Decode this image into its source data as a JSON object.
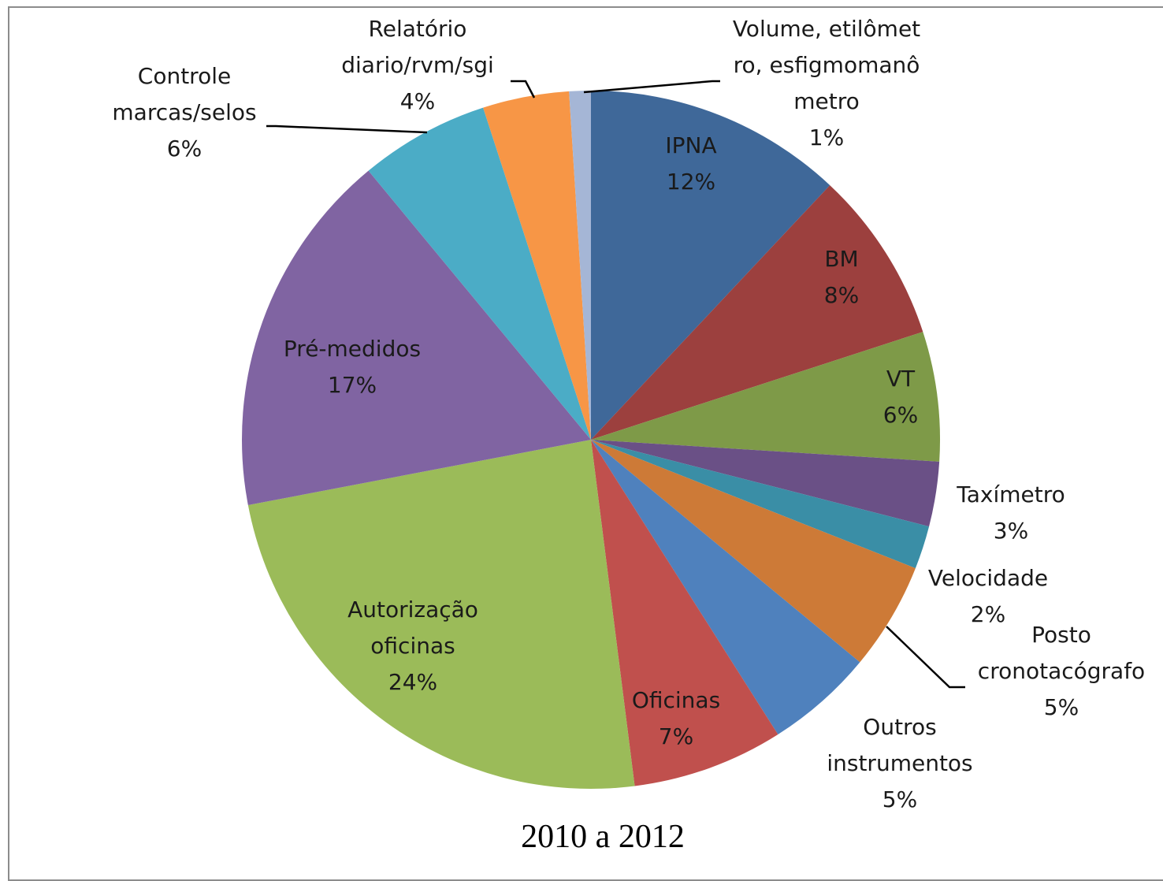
{
  "chart_data": {
    "type": "pie",
    "caption": "2010 a 2012",
    "start_angle_deg": 0,
    "direction": "clockwise",
    "slices": [
      {
        "label": [
          "IPNA"
        ],
        "pct_label": "12%",
        "value": 12,
        "color": "#3f6899"
      },
      {
        "label": [
          "BM"
        ],
        "pct_label": "8%",
        "value": 8,
        "color": "#9c403e"
      },
      {
        "label": [
          "VT"
        ],
        "pct_label": "6%",
        "value": 6,
        "color": "#7e9a48"
      },
      {
        "label": [
          "Taxímetro"
        ],
        "pct_label": "3%",
        "value": 3,
        "color": "#6a5086"
      },
      {
        "label": [
          "Velocidade"
        ],
        "pct_label": "2%",
        "value": 2,
        "color": "#3a8ea6"
      },
      {
        "label": [
          "Posto",
          "cronotacógrafo"
        ],
        "pct_label": "5%",
        "value": 5,
        "color": "#cd7a37"
      },
      {
        "label": [
          "Outros",
          "instrumentos"
        ],
        "pct_label": "5%",
        "value": 5,
        "color": "#4f81bd"
      },
      {
        "label": [
          "Oficinas"
        ],
        "pct_label": "7%",
        "value": 7,
        "color": "#c0504d"
      },
      {
        "label": [
          "Autorização",
          "oficinas"
        ],
        "pct_label": "24%",
        "value": 24,
        "color": "#9bbb59"
      },
      {
        "label": [
          "Pré-medidos"
        ],
        "pct_label": "17%",
        "value": 17,
        "color": "#8064a2"
      },
      {
        "label": [
          "Controle",
          "marcas/selos"
        ],
        "pct_label": "6%",
        "value": 6,
        "color": "#4bacc6"
      },
      {
        "label": [
          "Relatório",
          "diario/rvm/sgi"
        ],
        "pct_label": "4%",
        "value": 4,
        "color": "#f79646"
      },
      {
        "label": [
          "Volume, etilômet",
          "ro, esfigmomanô",
          "metro"
        ],
        "pct_label": "1%",
        "value": 1,
        "color": "#a5b6d6"
      }
    ]
  }
}
